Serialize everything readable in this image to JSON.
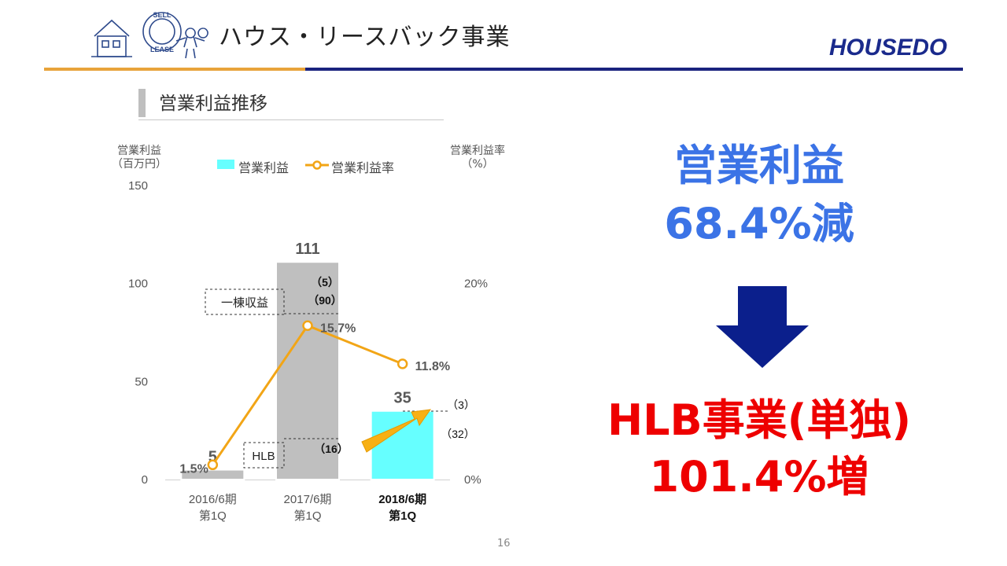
{
  "header": {
    "title": "ハウス・リースバック事業",
    "logo_left_text": [
      "SELL",
      "LEASE"
    ],
    "logo_right_text": "HOUSEDO",
    "accent_orange": "#e8a33a",
    "accent_navy": "#1a237e"
  },
  "section": {
    "title": "営業利益推移"
  },
  "chart_data": {
    "type": "bar",
    "categories": [
      [
        "2016/6期",
        "第1Q"
      ],
      [
        "2017/6期",
        "第1Q"
      ],
      [
        "2018/6期",
        "第1Q"
      ]
    ],
    "series": [
      {
        "name": "営業利益",
        "kind": "bar",
        "axis": "left",
        "values": [
          5,
          111,
          35
        ],
        "labels": [
          "5",
          "111",
          "35"
        ],
        "colors": [
          "#bfbfbf",
          "#bfbfbf",
          "#66ffff"
        ]
      },
      {
        "name": "営業利益率",
        "kind": "line",
        "axis": "right",
        "values": [
          1.5,
          15.7,
          11.8
        ],
        "labels": [
          "1.5%",
          "15.7%",
          "11.8%"
        ],
        "color": "#f2a516"
      }
    ],
    "ylabel_left": [
      "営業利益",
      "（百万円）"
    ],
    "ylabel_right": [
      "営業利益率",
      "（%）"
    ],
    "y_left": {
      "range": [
        0,
        150
      ],
      "ticks": [
        0,
        50,
        100,
        150
      ]
    },
    "y_right": {
      "range": [
        0,
        30
      ],
      "ticks": [
        0,
        20
      ],
      "tick_labels": [
        "0%",
        "20%"
      ]
    },
    "legend_position": "top",
    "grid": false,
    "highlight_category": 2,
    "annotations": {
      "box_ikkou": "一棟収益",
      "box_hlb": "HLB",
      "ikkou_values": [
        "（5）",
        "（90）"
      ],
      "hlb_value": "（16）",
      "q2018_top": "（3）",
      "q2018_bottom": "（32）"
    }
  },
  "headline": {
    "line1": "営業利益",
    "line2": "68.4%減",
    "line3": "HLB事業(単独)",
    "line4": "101.4%増",
    "down_arrow_color": "#0b1f8c"
  },
  "page_number": "16"
}
